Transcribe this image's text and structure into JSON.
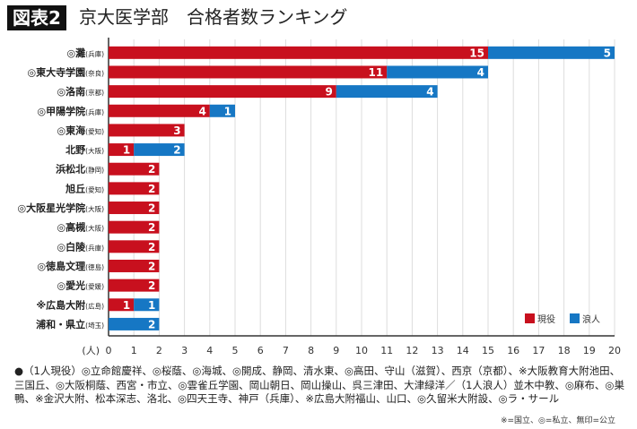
{
  "header": {
    "badge": "図表2",
    "title": "京大医学部　合格者数ランキング"
  },
  "chart_data": {
    "type": "bar",
    "orientation": "horizontal",
    "stacked": true,
    "categories": [
      {
        "name": "◎灘",
        "pref": "(兵庫)"
      },
      {
        "name": "◎東大寺学園",
        "pref": "(奈良)"
      },
      {
        "name": "◎洛南",
        "pref": "(京都)"
      },
      {
        "name": "◎甲陽学院",
        "pref": "(兵庫)"
      },
      {
        "name": "◎東海",
        "pref": "(愛知)"
      },
      {
        "name": "北野",
        "pref": "(大阪)"
      },
      {
        "name": "浜松北",
        "pref": "(静岡)"
      },
      {
        "name": "旭丘",
        "pref": "(愛知)"
      },
      {
        "name": "◎大阪星光学院",
        "pref": "(大阪)"
      },
      {
        "name": "◎高槻",
        "pref": "(大阪)"
      },
      {
        "name": "◎白陵",
        "pref": "(兵庫)"
      },
      {
        "name": "◎徳島文理",
        "pref": "(徳島)"
      },
      {
        "name": "◎愛光",
        "pref": "(愛媛)"
      },
      {
        "name": "※広島大附",
        "pref": "(広島)"
      },
      {
        "name": "浦和・県立",
        "pref": "(埼玉)"
      }
    ],
    "series": [
      {
        "name": "現役",
        "color": "#c8101e",
        "values": [
          15,
          11,
          9,
          4,
          3,
          1,
          2,
          2,
          2,
          2,
          2,
          2,
          2,
          1,
          0
        ]
      },
      {
        "name": "浪人",
        "color": "#1677c4",
        "values": [
          5,
          4,
          4,
          1,
          0,
          2,
          0,
          0,
          0,
          0,
          0,
          0,
          0,
          1,
          2
        ]
      }
    ],
    "xlim": [
      0,
      20
    ],
    "xticks": [
      0,
      1,
      2,
      3,
      4,
      5,
      6,
      7,
      8,
      9,
      10,
      11,
      12,
      13,
      14,
      15,
      16,
      17,
      18,
      19,
      20
    ],
    "xunit": "(人)",
    "grid": true,
    "legend": "bottom-right"
  },
  "footnote": "●（1人現役）◎立命館慶祥、◎桜蔭、◎海城、◎開成、静岡、清水東、◎高田、守山（滋賀）、西京（京都）、※大阪教育大附池田、三国丘、◎大阪桐蔭、西宮・市立、◎雲雀丘学園、岡山朝日、岡山操山、呉三津田、大津緑洋／（1人浪人）並木中教、◎麻布、◎巣鴨、※金沢大附、松本深志、洛北、◎四天王寺、神戸（兵庫）、※広島大附福山、山口、◎久留米大附設、◎ラ・サール",
  "legend_note": "※=国立、◎=私立、無印=公立"
}
